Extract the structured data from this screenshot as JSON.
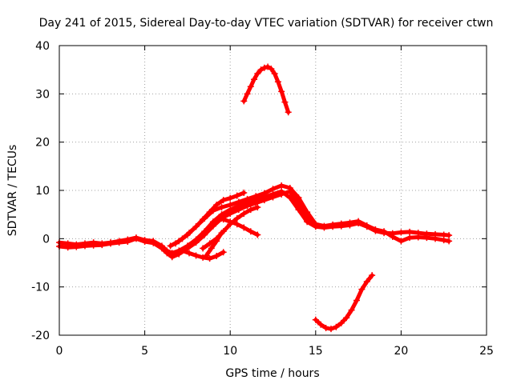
{
  "chart_data": {
    "type": "scatter",
    "title": "Day 241 of 2015, Sidereal Day-to-day VTEC variation (SDTVAR) for receiver ctwn",
    "xlabel": "GPS time / hours",
    "ylabel": "SDTVAR / TECUs",
    "xlim": [
      0,
      25
    ],
    "ylim": [
      -20,
      40
    ],
    "xticks": [
      0,
      5,
      10,
      15,
      20,
      25
    ],
    "yticks": [
      -20,
      -10,
      0,
      10,
      20,
      30,
      40
    ],
    "grid": true,
    "color": "#ff0000",
    "marker": "+",
    "series": [
      {
        "name": "track-main-a",
        "x": [
          0,
          0.5,
          1,
          1.5,
          2,
          2.5,
          3,
          3.5,
          4,
          4.5,
          5,
          5.5,
          6,
          6.3,
          6.6,
          7,
          7.5,
          8,
          8.5,
          9,
          9.5,
          10,
          10.5,
          11,
          11.5,
          12,
          12.5,
          13,
          13.5,
          14,
          14.5,
          15,
          15.5,
          16,
          16.5,
          17,
          17.5,
          18,
          18.5,
          19,
          19.5,
          20,
          20.5,
          21,
          21.5,
          22,
          22.5,
          22.8
        ],
        "y": [
          -0.8,
          -1,
          -1.2,
          -1,
          -0.8,
          -1,
          -0.8,
          -0.5,
          -0.2,
          0.2,
          -0.3,
          -0.5,
          -1.5,
          -2.5,
          -3,
          -2.5,
          -1.5,
          -0.2,
          1.5,
          3.5,
          5,
          6,
          6.8,
          7.5,
          8,
          8.6,
          9.2,
          9.8,
          8.5,
          6,
          3.5,
          2.5,
          2.3,
          2.5,
          2.6,
          2.8,
          3.2,
          2.5,
          1.6,
          1.2,
          1.1,
          1.3,
          1.4,
          1.2,
          1,
          0.9,
          0.8,
          0.7
        ]
      },
      {
        "name": "track-main-b",
        "x": [
          0,
          0.5,
          1,
          1.5,
          2,
          2.5,
          3,
          3.5,
          4,
          4.5,
          5,
          5.5,
          6,
          6.3,
          6.6,
          7,
          7.5,
          8,
          8.5,
          9,
          9.5,
          10,
          10.5,
          11,
          11.5,
          12,
          12.5,
          13,
          13.5,
          14,
          14.5,
          15,
          15.5,
          16,
          16.5,
          17,
          17.5,
          18,
          18.5,
          19,
          19.5,
          20,
          20.5,
          21,
          21.5,
          22,
          22.5,
          22.8
        ],
        "y": [
          -1.6,
          -1.8,
          -1.7,
          -1.5,
          -1.4,
          -1.3,
          -1,
          -0.8,
          -0.6,
          0,
          -0.6,
          -0.9,
          -2,
          -3,
          -3.8,
          -3.2,
          -2,
          -0.8,
          0.8,
          2.6,
          4.2,
          5.2,
          6,
          6.8,
          7.4,
          8,
          8.6,
          9.2,
          9.8,
          7.2,
          4.5,
          3,
          2.6,
          2.9,
          3.1,
          3.3,
          3.6,
          2.7,
          1.9,
          1.5,
          0.4,
          -0.5,
          0.2,
          0.3,
          0.2,
          0,
          -0.3,
          -0.5
        ]
      },
      {
        "name": "track-main-c",
        "x": [
          6.5,
          7,
          7.5,
          8,
          8.5,
          9,
          9.5,
          10,
          10.5,
          11,
          11.5,
          12,
          12.5,
          13,
          13.5,
          14,
          14.5,
          15
        ],
        "y": [
          -1.5,
          -0.5,
          0.8,
          2.5,
          4.2,
          5.8,
          6.5,
          7,
          7.6,
          8.2,
          8.8,
          9.4,
          10.3,
          11,
          10.5,
          8.5,
          5.5,
          3
        ]
      },
      {
        "name": "track-side-a",
        "x": [
          6.8,
          7.2,
          7.6,
          8,
          8.4,
          8.8,
          9.2,
          9.6,
          10,
          10.4,
          10.8
        ],
        "y": [
          -1,
          0,
          1.2,
          2.5,
          4,
          5.5,
          7,
          8,
          8.4,
          8.9,
          9.5
        ]
      },
      {
        "name": "track-side-b",
        "x": [
          8.4,
          8.8,
          9.2,
          9.6,
          10,
          10.4,
          10.8,
          11.2,
          11.6
        ],
        "y": [
          -2,
          -1,
          0,
          1.5,
          3,
          4.2,
          5.2,
          6,
          6.5
        ]
      },
      {
        "name": "track-side-c",
        "x": [
          9.6,
          10,
          10.4,
          10.8,
          11.2,
          11.6
        ],
        "y": [
          4,
          3.5,
          3,
          2.3,
          1.5,
          0.8
        ]
      },
      {
        "name": "track-low-a",
        "x": [
          7.2,
          7.6,
          8,
          8.4,
          8.8,
          9.2,
          9.6
        ],
        "y": [
          -2.5,
          -3,
          -3.5,
          -3.9,
          -4.1,
          -3.6,
          -2.8
        ]
      },
      {
        "name": "track-low-b",
        "x": [
          8.6,
          8.9,
          9.2,
          9.5
        ],
        "y": [
          -3.5,
          -2,
          -0.5,
          1.2
        ]
      },
      {
        "name": "arc-upper",
        "x": [
          10.8,
          11,
          11.2,
          11.4,
          11.6,
          11.8,
          12,
          12.2,
          12.4,
          12.6,
          12.8,
          13,
          13.2,
          13.4
        ],
        "y": [
          28.5,
          30,
          31.5,
          33,
          34.2,
          35,
          35.4,
          35.6,
          35.2,
          34.2,
          32.5,
          30.5,
          28.3,
          26.2
        ]
      },
      {
        "name": "arc-lower",
        "x": [
          15,
          15.3,
          15.6,
          15.9,
          16.2,
          16.5,
          16.8,
          17.1,
          17.4,
          17.7,
          18,
          18.3
        ],
        "y": [
          -16.8,
          -17.8,
          -18.5,
          -18.7,
          -18.3,
          -17.5,
          -16.4,
          -14.8,
          -12.8,
          -10.5,
          -8.9,
          -7.6
        ]
      }
    ]
  }
}
